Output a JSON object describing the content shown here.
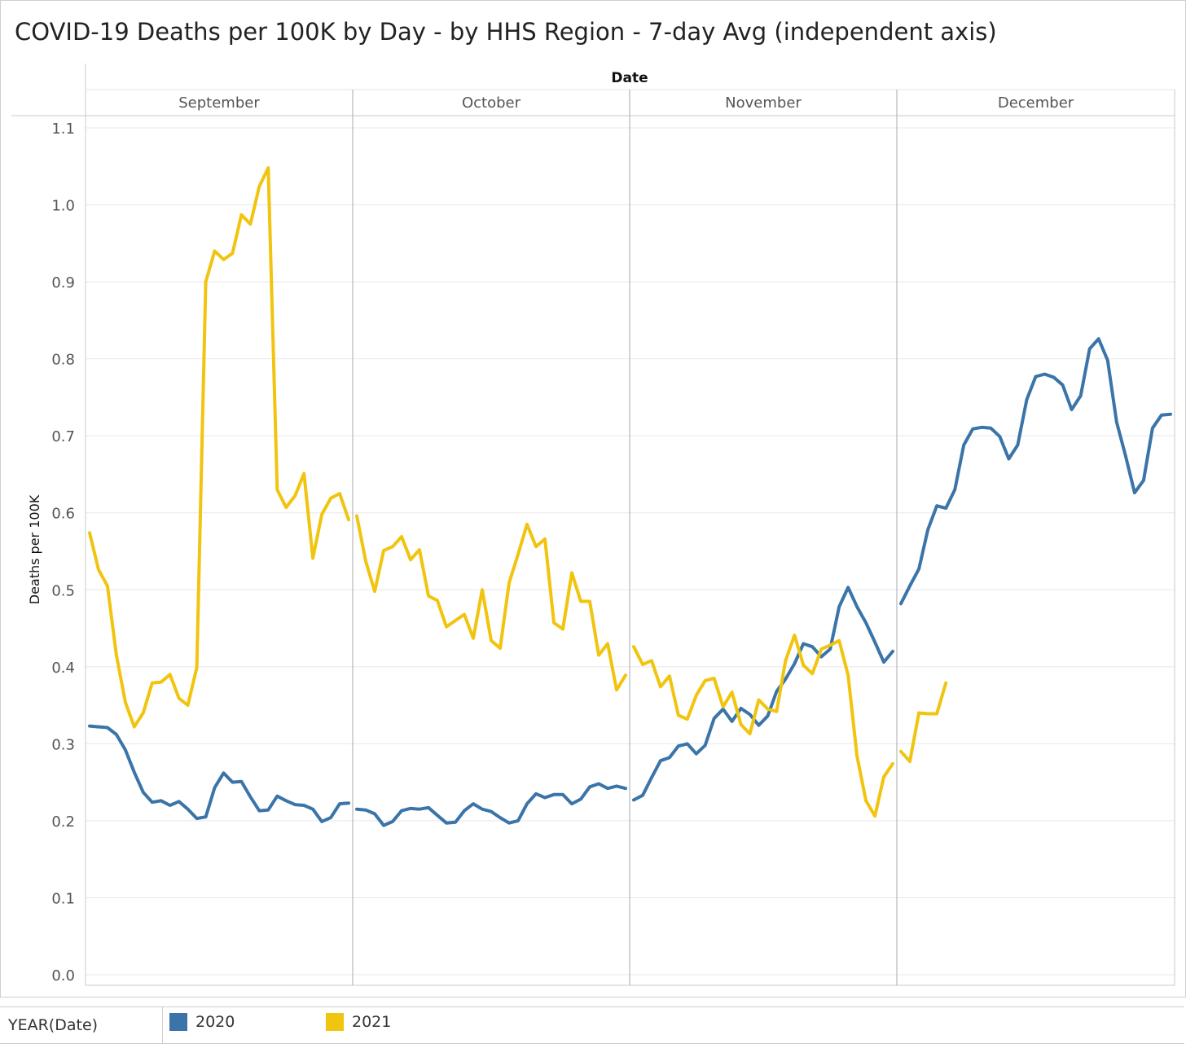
{
  "chart_data": {
    "type": "line",
    "title": "COVID-19 Deaths per 100K by Day - by HHS Region - 7-day Avg (independent axis)",
    "column_header": "Date",
    "panels": [
      "September",
      "October",
      "November",
      "December"
    ],
    "ylabel": "Deaths per 100K",
    "ylim": [
      0,
      1.1
    ],
    "yticks": [
      "0.0",
      "0.1",
      "0.2",
      "0.3",
      "0.4",
      "0.5",
      "0.6",
      "0.7",
      "0.8",
      "0.9",
      "1.0",
      "1.1"
    ],
    "legend_field": "YEAR(Date)",
    "series": [
      {
        "name": "2020",
        "color": "#3a74a8",
        "panels": [
          [
            0.323,
            0.322,
            0.321,
            0.312,
            0.292,
            0.263,
            0.237,
            0.224,
            0.226,
            0.22,
            0.225,
            0.215,
            0.203,
            0.205,
            0.243,
            0.262,
            0.25,
            0.251,
            0.231,
            0.213,
            0.214,
            0.232,
            0.226,
            0.221,
            0.22,
            0.215,
            0.199,
            0.204,
            0.222,
            0.223
          ],
          [
            0.215,
            0.214,
            0.209,
            0.194,
            0.199,
            0.213,
            0.216,
            0.215,
            0.217,
            0.207,
            0.197,
            0.198,
            0.213,
            0.222,
            0.215,
            0.212,
            0.204,
            0.197,
            0.2,
            0.222,
            0.235,
            0.23,
            0.234,
            0.234,
            0.222,
            0.228,
            0.244,
            0.248,
            0.242,
            0.245,
            0.242
          ],
          [
            0.227,
            0.233,
            0.256,
            0.278,
            0.282,
            0.297,
            0.3,
            0.287,
            0.298,
            0.333,
            0.345,
            0.329,
            0.346,
            0.338,
            0.324,
            0.336,
            0.368,
            0.384,
            0.404,
            0.43,
            0.426,
            0.413,
            0.423,
            0.478,
            0.503,
            0.478,
            0.457,
            0.432,
            0.406,
            0.42
          ],
          [
            0.482,
            0.505,
            0.527,
            0.578,
            0.609,
            0.606,
            0.63,
            0.688,
            0.709,
            0.711,
            0.71,
            0.699,
            0.67,
            0.688,
            0.747,
            0.777,
            0.78,
            0.776,
            0.766,
            0.734,
            0.752,
            0.813,
            0.826,
            0.798,
            0.718,
            0.674,
            0.626,
            0.642,
            0.71,
            0.727,
            0.728
          ]
        ]
      },
      {
        "name": "2021",
        "color": "#f1c40f",
        "panels": [
          [
            0.574,
            0.526,
            0.505,
            0.415,
            0.354,
            0.322,
            0.34,
            0.379,
            0.38,
            0.39,
            0.359,
            0.35,
            0.399,
            0.9,
            0.94,
            0.929,
            0.937,
            0.987,
            0.975,
            1.024,
            1.048,
            0.63,
            0.607,
            0.622,
            0.651,
            0.541,
            0.598,
            0.619,
            0.625,
            0.591
          ],
          [
            0.596,
            0.537,
            0.498,
            0.551,
            0.556,
            0.569,
            0.539,
            0.552,
            0.492,
            0.486,
            0.452,
            0.46,
            0.468,
            0.437,
            0.5,
            0.434,
            0.424,
            0.509,
            0.546,
            0.585,
            0.556,
            0.566,
            0.457,
            0.449,
            0.522,
            0.485,
            0.485,
            0.415,
            0.43,
            0.37,
            0.389
          ],
          [
            0.426,
            0.403,
            0.408,
            0.374,
            0.388,
            0.337,
            0.332,
            0.363,
            0.382,
            0.385,
            0.348,
            0.367,
            0.325,
            0.313,
            0.357,
            0.345,
            0.342,
            0.408,
            0.441,
            0.402,
            0.391,
            0.423,
            0.428,
            0.434,
            0.389,
            0.284,
            0.226,
            0.206,
            0.257,
            0.274
          ],
          [
            0.29,
            0.277,
            0.34,
            0.339,
            0.339,
            0.379
          ]
        ]
      }
    ]
  }
}
